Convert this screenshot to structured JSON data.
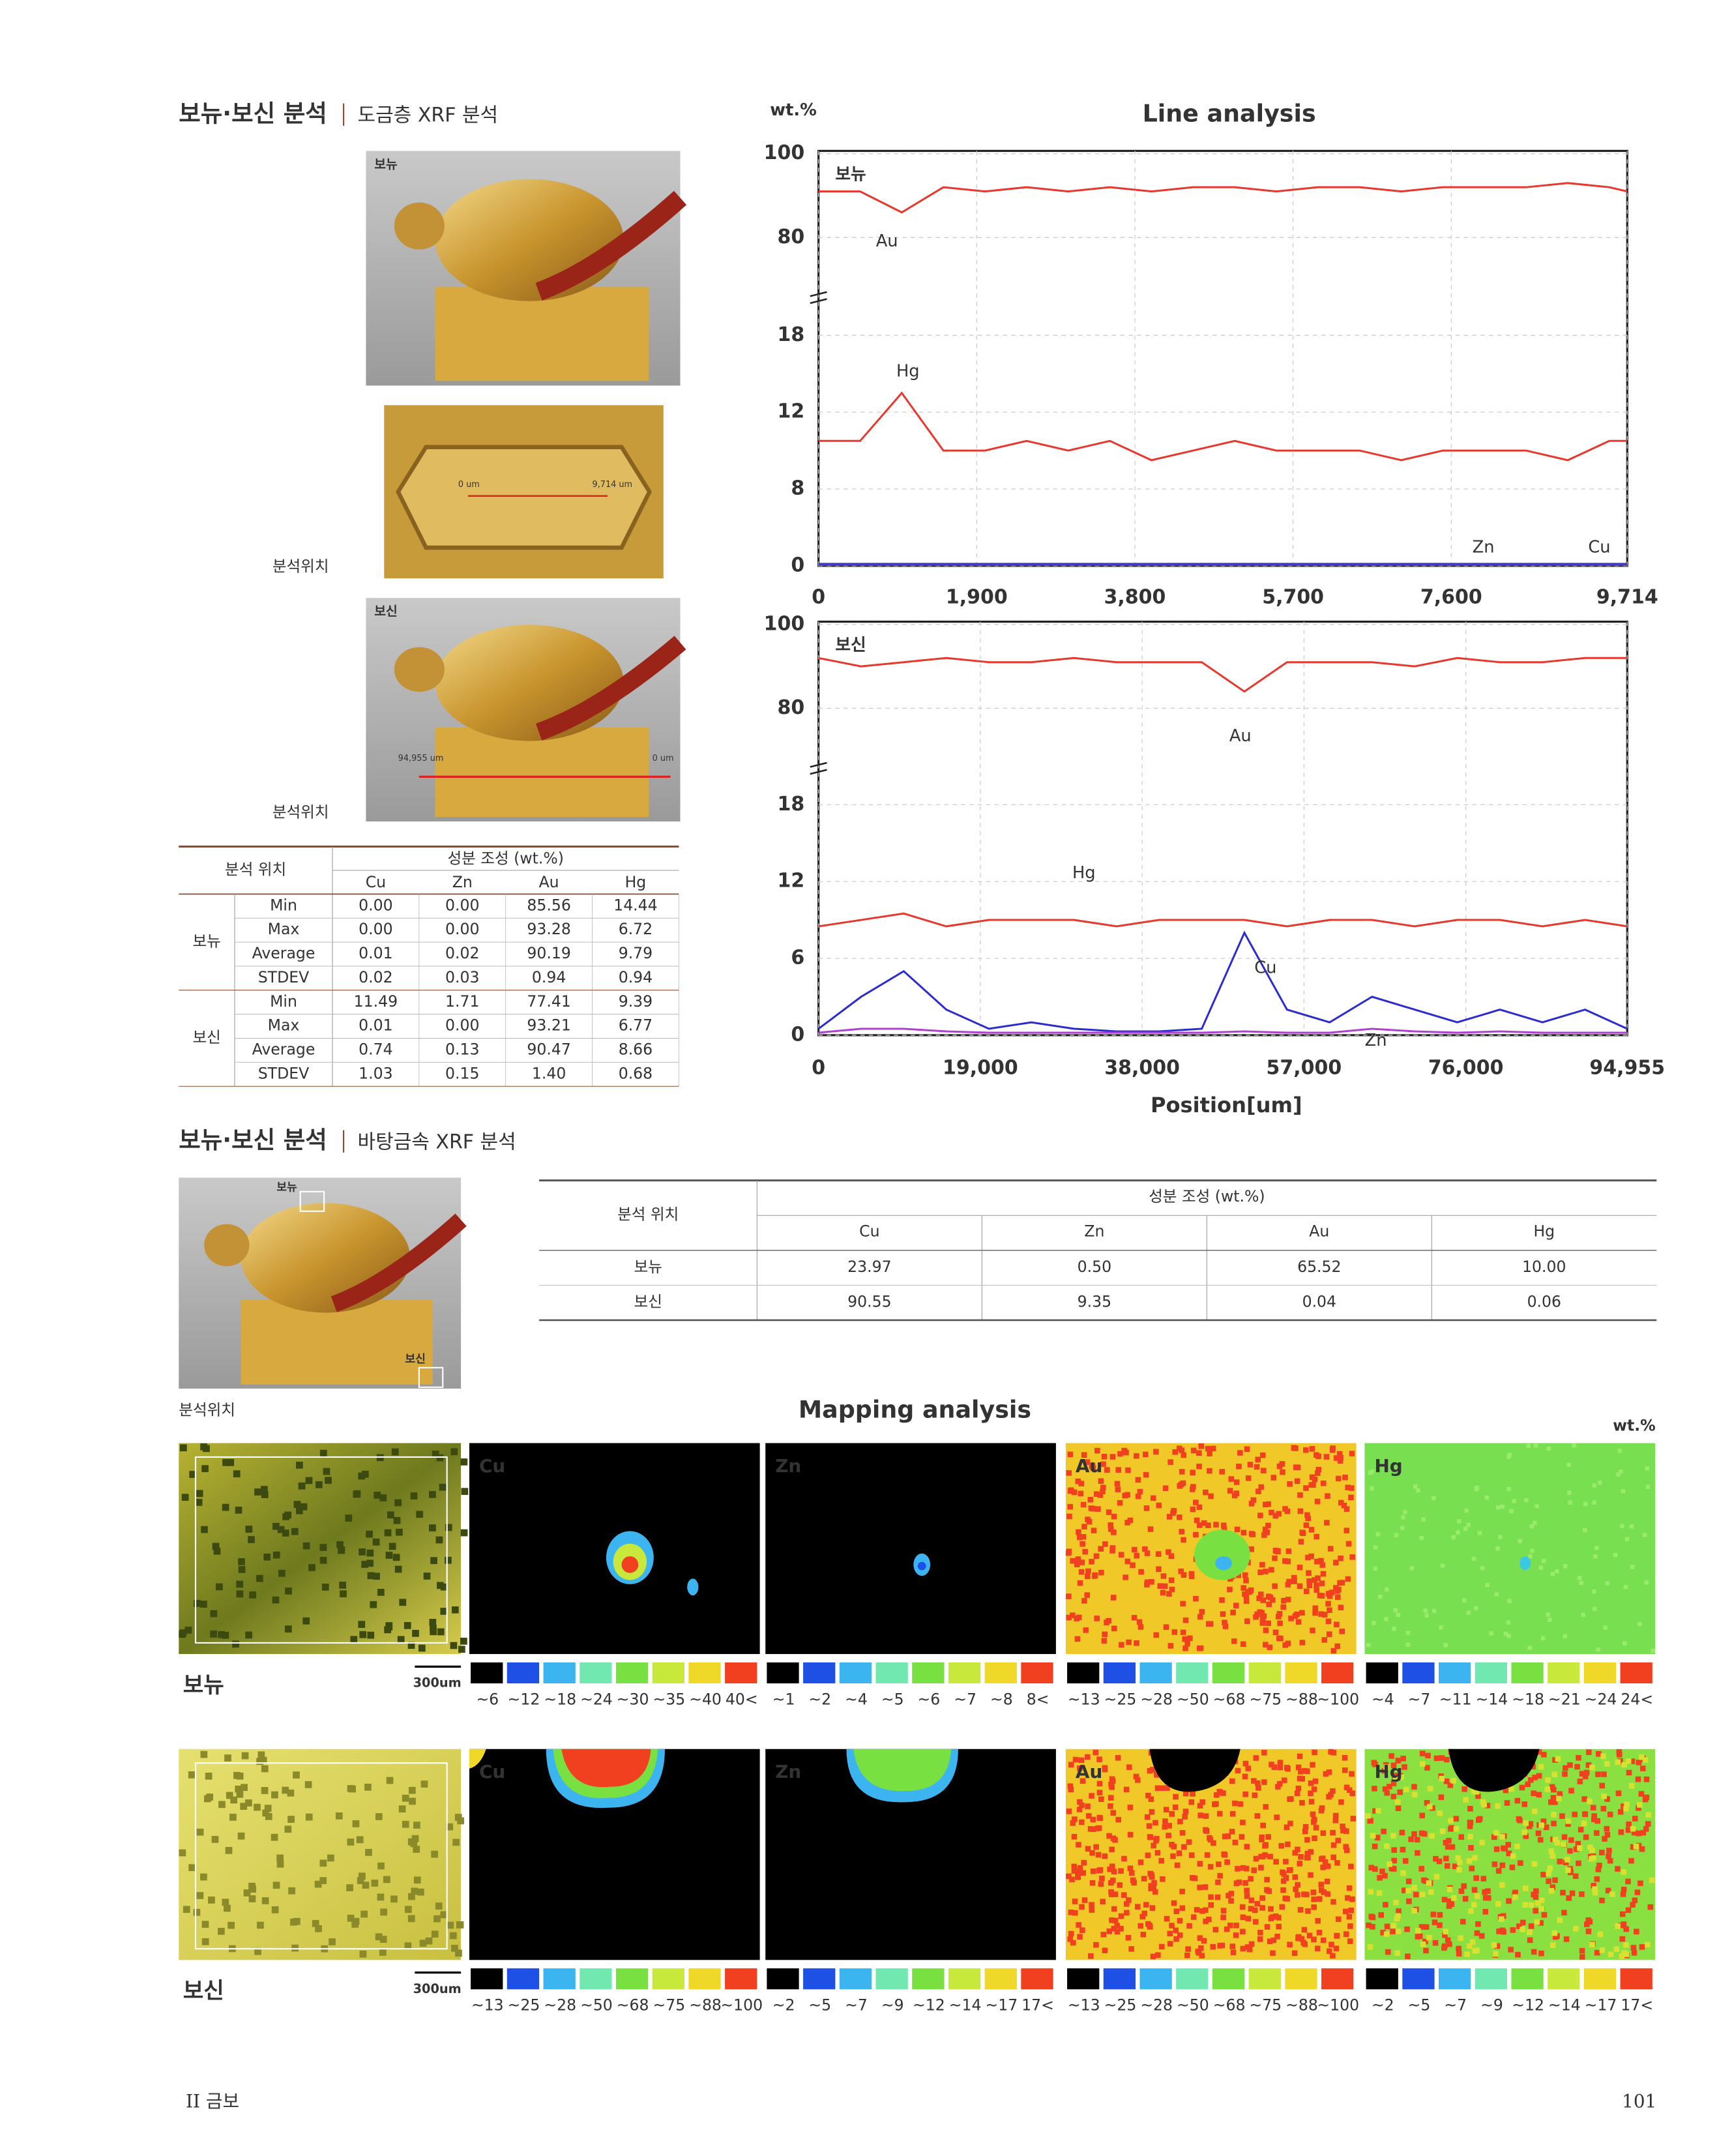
{
  "section1": {
    "title": "보뉴·보신 분석",
    "subtitle": "도금층 XRF 분석"
  },
  "photos1": {
    "sample_a": "보뉴",
    "scan_start": "0 um",
    "scan_end": "9,714 um",
    "location_a": "분석위치",
    "sample_b": "보신",
    "scan_b_start": "94,955 um",
    "scan_b_end": "0 um",
    "location_b": "분석위치"
  },
  "table1": {
    "header_location": "분석 위치",
    "header_composition": "성분 조성 (wt.%)",
    "columns": [
      "Cu",
      "Zn",
      "Au",
      "Hg"
    ],
    "groups": [
      {
        "sample": "보뉴",
        "rows": [
          {
            "stat": "Min",
            "values": [
              "0.00",
              "0.00",
              "85.56",
              "14.44"
            ]
          },
          {
            "stat": "Max",
            "values": [
              "0.00",
              "0.00",
              "93.28",
              "6.72"
            ]
          },
          {
            "stat": "Average",
            "values": [
              "0.01",
              "0.02",
              "90.19",
              "9.79"
            ]
          },
          {
            "stat": "STDEV",
            "values": [
              "0.02",
              "0.03",
              "0.94",
              "0.94"
            ]
          }
        ]
      },
      {
        "sample": "보신",
        "rows": [
          {
            "stat": "Min",
            "values": [
              "11.49",
              "1.71",
              "77.41",
              "9.39"
            ]
          },
          {
            "stat": "Max",
            "values": [
              "0.01",
              "0.00",
              "93.21",
              "6.77"
            ]
          },
          {
            "stat": "Average",
            "values": [
              "0.74",
              "0.13",
              "90.47",
              "8.66"
            ]
          },
          {
            "stat": "STDEV",
            "values": [
              "1.03",
              "0.15",
              "1.40",
              "0.68"
            ]
          }
        ]
      }
    ]
  },
  "chart_data": [
    {
      "type": "line",
      "title": "Line analysis",
      "y_label": "wt.%",
      "sample": "보뉴",
      "grid": true,
      "xlim": [
        0,
        9714
      ],
      "xticks": [
        0,
        {
          "value": 1900,
          "label": "1,900"
        },
        {
          "value": 3800,
          "label": "3,800"
        },
        {
          "value": 5700,
          "label": "5,700"
        },
        {
          "value": 7600,
          "label": "7,600"
        },
        {
          "value": 9714,
          "label": "9,714"
        }
      ],
      "ylim": [
        0,
        100
      ],
      "yticks": [
        0,
        8,
        12,
        18,
        80,
        100
      ],
      "x": [
        0,
        500,
        1000,
        1500,
        2000,
        2500,
        3000,
        3500,
        4000,
        4500,
        5000,
        5500,
        6000,
        6500,
        7000,
        7500,
        8000,
        8500,
        9000,
        9500,
        9714
      ],
      "series": [
        {
          "name": "Au",
          "color": "#e8382e",
          "values": [
            91,
            91,
            86,
            92,
            91,
            92,
            91,
            92,
            91,
            92,
            92,
            91,
            92,
            92,
            91,
            92,
            92,
            92,
            93,
            92,
            91
          ]
        },
        {
          "name": "Hg",
          "color": "#e8382e",
          "values": [
            10.5,
            10.5,
            13.5,
            10,
            10,
            10.5,
            10,
            10.5,
            9.5,
            10,
            10.5,
            10,
            10,
            10,
            9.5,
            10,
            10,
            10,
            9.5,
            10.5,
            10.5
          ]
        },
        {
          "name": "Zn",
          "color": "#5a3cc8",
          "values": [
            0.1,
            0.1,
            0.1,
            0.1,
            0.1,
            0.1,
            0.1,
            0.1,
            0.1,
            0.1,
            0.1,
            0.1,
            0.1,
            0.1,
            0.1,
            0.1,
            0.1,
            0.1,
            0.1,
            0.1,
            0.1
          ]
        },
        {
          "name": "Cu",
          "color": "#3a3ac0",
          "values": [
            0.2,
            0.2,
            0.2,
            0.2,
            0.2,
            0.2,
            0.2,
            0.2,
            0.2,
            0.2,
            0.2,
            0.2,
            0.2,
            0.2,
            0.2,
            0.2,
            0.2,
            0.2,
            0.2,
            0.2,
            0.2
          ]
        }
      ]
    },
    {
      "type": "line",
      "sample": "보신",
      "x_label": "Position[um]",
      "grid": true,
      "xlim": [
        0,
        94955
      ],
      "xticks": [
        0,
        {
          "value": 19000,
          "label": "19,000"
        },
        {
          "value": 38000,
          "label": "38,000"
        },
        {
          "value": 57000,
          "label": "57,000"
        },
        {
          "value": 76000,
          "label": "76,000"
        },
        {
          "value": 94955,
          "label": "94,955"
        }
      ],
      "ylim": [
        0,
        100
      ],
      "yticks": [
        0,
        6,
        12,
        18,
        80,
        100
      ],
      "x": [
        0,
        5000,
        10000,
        15000,
        20000,
        25000,
        30000,
        35000,
        40000,
        45000,
        50000,
        55000,
        60000,
        65000,
        70000,
        75000,
        80000,
        85000,
        90000,
        94955
      ],
      "series": [
        {
          "name": "Au",
          "color": "#e8382e",
          "values": [
            92,
            90,
            91,
            92,
            91,
            91,
            92,
            91,
            91,
            91,
            84,
            91,
            91,
            91,
            90,
            92,
            91,
            91,
            92,
            92
          ]
        },
        {
          "name": "Hg",
          "color": "#e8382e",
          "values": [
            8.5,
            9,
            9.5,
            8.5,
            9,
            9,
            9,
            8.5,
            9,
            9,
            9,
            8.5,
            9,
            9,
            8.5,
            9,
            9,
            8.5,
            9,
            8.5
          ]
        },
        {
          "name": "Cu",
          "color": "#2b2bd0",
          "values": [
            0.5,
            3,
            5,
            2,
            0.5,
            1,
            0.5,
            0.3,
            0.3,
            0.5,
            8,
            2,
            1,
            3,
            2,
            1,
            2,
            1,
            2,
            0.5
          ]
        },
        {
          "name": "Zn",
          "color": "#b040d0",
          "values": [
            0.2,
            0.5,
            0.5,
            0.3,
            0.2,
            0.2,
            0.2,
            0.2,
            0.2,
            0.2,
            0.3,
            0.2,
            0.2,
            0.5,
            0.3,
            0.2,
            0.3,
            0.2,
            0.2,
            0.2
          ]
        }
      ]
    }
  ],
  "section2": {
    "title": "보뉴·보신 분석",
    "subtitle": "바탕금속 XRF 분석"
  },
  "photos2": {
    "sample_a": "보뉴",
    "sample_b": "보신",
    "location": "분석위치"
  },
  "table2": {
    "header_location": "분석 위치",
    "header_composition": "성분 조성 (wt.%)",
    "columns": [
      "Cu",
      "Zn",
      "Au",
      "Hg"
    ],
    "rows": [
      {
        "sample": "보뉴",
        "values": [
          "23.97",
          "0.50",
          "65.52",
          "10.00"
        ]
      },
      {
        "sample": "보신",
        "values": [
          "90.55",
          "9.35",
          "0.04",
          "0.06"
        ]
      }
    ]
  },
  "mapping": {
    "title": "Mapping analysis",
    "unit": "wt.%",
    "rows": [
      {
        "sample": "보뉴",
        "scale_bar": "300um",
        "panels": [
          {
            "element": "Cu",
            "scale": [
              "~6",
              "~12",
              "~18",
              "~24",
              "~30",
              "~35",
              "~40",
              "40<"
            ]
          },
          {
            "element": "Zn",
            "scale": [
              "~1",
              "~2",
              "~4",
              "~5",
              "~6",
              "~7",
              "~8",
              "8<"
            ]
          },
          {
            "element": "Au",
            "scale": [
              "~13",
              "~25",
              "~28",
              "~50",
              "~68",
              "~75",
              "~88",
              "~100"
            ]
          },
          {
            "element": "Hg",
            "scale": [
              "~4",
              "~7",
              "~11",
              "~14",
              "~18",
              "~21",
              "~24",
              "24<"
            ]
          }
        ]
      },
      {
        "sample": "보신",
        "scale_bar": "300um",
        "panels": [
          {
            "element": "Cu",
            "scale": [
              "~13",
              "~25",
              "~28",
              "~50",
              "~68",
              "~75",
              "~88",
              "~100"
            ]
          },
          {
            "element": "Zn",
            "scale": [
              "~2",
              "~5",
              "~7",
              "~9",
              "~12",
              "~14",
              "~17",
              "17<"
            ]
          },
          {
            "element": "Au",
            "scale": [
              "~13",
              "~25",
              "~28",
              "~50",
              "~68",
              "~75",
              "~88",
              "~100"
            ]
          },
          {
            "element": "Hg",
            "scale": [
              "~2",
              "~5",
              "~7",
              "~9",
              "~12",
              "~14",
              "~17",
              "17<"
            ]
          }
        ]
      }
    ]
  },
  "footer": {
    "chapter": "II 금보",
    "page": "101"
  }
}
